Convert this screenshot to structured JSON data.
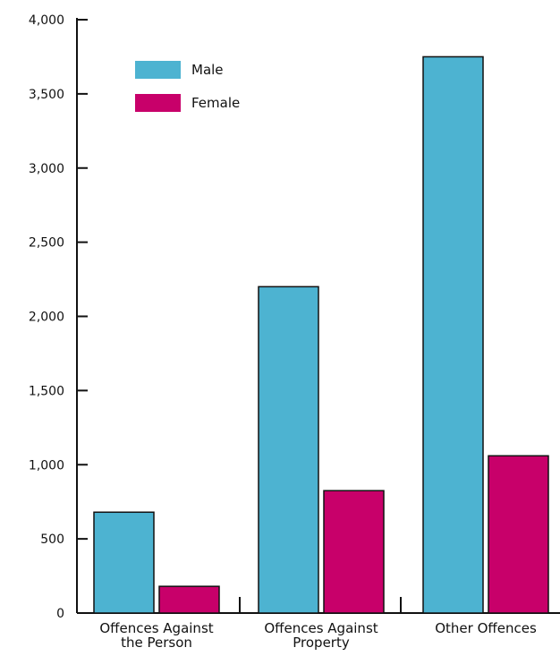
{
  "chart_data": {
    "type": "bar",
    "title": "",
    "xlabel": "",
    "ylabel": "",
    "categories": [
      [
        "Offences Against",
        "the Person"
      ],
      [
        "Offences Against",
        "Property"
      ],
      [
        "Other Offences"
      ]
    ],
    "series": [
      {
        "name": "Male",
        "color": "#4db3d1",
        "values": [
          680,
          2200,
          3750
        ]
      },
      {
        "name": "Female",
        "color": "#c8006a",
        "values": [
          180,
          825,
          1060
        ]
      }
    ],
    "ylim": [
      0,
      4000
    ],
    "yticks": [
      0,
      500,
      1000,
      1500,
      2000,
      2500,
      3000,
      3500,
      4000
    ],
    "ytick_labels": [
      "0",
      "500",
      "1,000",
      "1,500",
      "2,000",
      "2,500",
      "3,000",
      "3,500",
      "4,000"
    ],
    "grid": false,
    "legend_position": "top-left"
  }
}
